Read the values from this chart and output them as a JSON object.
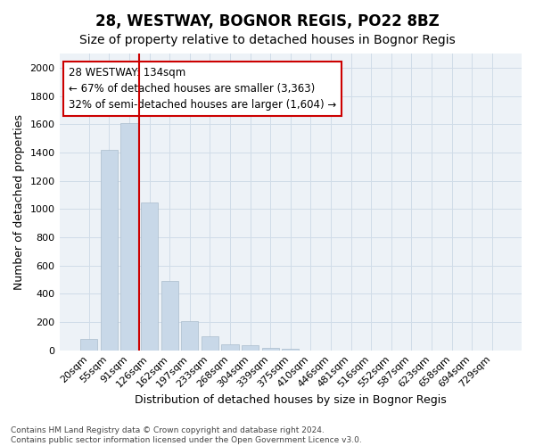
{
  "title": "28, WESTWAY, BOGNOR REGIS, PO22 8BZ",
  "subtitle": "Size of property relative to detached houses in Bognor Regis",
  "xlabel": "Distribution of detached houses by size in Bognor Regis",
  "ylabel": "Number of detached properties",
  "categories": [
    "20sqm",
    "55sqm",
    "91sqm",
    "126sqm",
    "162sqm",
    "197sqm",
    "233sqm",
    "268sqm",
    "304sqm",
    "339sqm",
    "375sqm",
    "410sqm",
    "446sqm",
    "481sqm",
    "516sqm",
    "552sqm",
    "587sqm",
    "623sqm",
    "658sqm",
    "694sqm",
    "729sqm"
  ],
  "values": [
    80,
    1415,
    1605,
    1045,
    490,
    205,
    100,
    42,
    35,
    18,
    10,
    0,
    0,
    0,
    0,
    0,
    0,
    0,
    0,
    0,
    0
  ],
  "bar_color": "#c8d8e8",
  "bar_edgecolor": "#aabccc",
  "vline_x": 2.5,
  "vline_color": "#cc0000",
  "annotation_text": "28 WESTWAY: 134sqm\n← 67% of detached houses are smaller (3,363)\n32% of semi-detached houses are larger (1,604) →",
  "annotation_box_edgecolor": "#cc0000",
  "annotation_box_facecolor": "#ffffff",
  "ylim": [
    0,
    2100
  ],
  "yticks": [
    0,
    200,
    400,
    600,
    800,
    1000,
    1200,
    1400,
    1600,
    1800,
    2000
  ],
  "grid_color": "#d0dce8",
  "background_color": "#edf2f7",
  "footer_text": "Contains HM Land Registry data © Crown copyright and database right 2024.\nContains public sector information licensed under the Open Government Licence v3.0.",
  "title_fontsize": 12,
  "subtitle_fontsize": 10,
  "axis_label_fontsize": 9,
  "tick_fontsize": 8,
  "annotation_fontsize": 8.5
}
